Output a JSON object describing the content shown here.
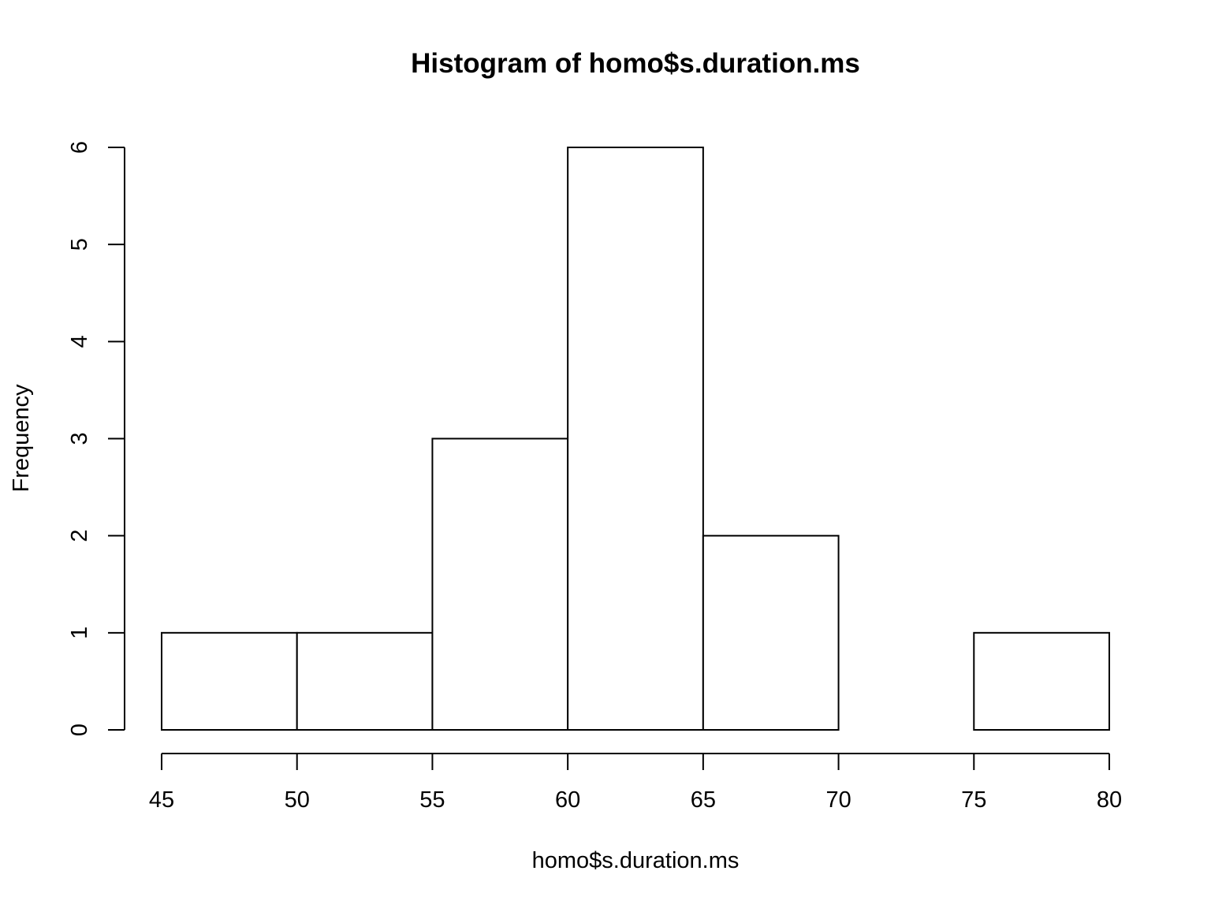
{
  "chart_data": {
    "type": "bar",
    "title": "Histogram of homo$s.duration.ms",
    "xlabel": "homo$s.duration.ms",
    "ylabel": "Frequency",
    "bins": [
      {
        "from": 45,
        "to": 50,
        "count": 1
      },
      {
        "from": 50,
        "to": 55,
        "count": 1
      },
      {
        "from": 55,
        "to": 60,
        "count": 3
      },
      {
        "from": 60,
        "to": 65,
        "count": 6
      },
      {
        "from": 65,
        "to": 70,
        "count": 2
      },
      {
        "from": 70,
        "to": 75,
        "count": 0
      },
      {
        "from": 75,
        "to": 80,
        "count": 1
      }
    ],
    "xticks": [
      45,
      50,
      55,
      60,
      65,
      70,
      75,
      80
    ],
    "yticks": [
      0,
      1,
      2,
      3,
      4,
      5,
      6
    ],
    "xlim": [
      45,
      80
    ],
    "ylim": [
      0,
      6
    ],
    "grid": false,
    "legend": "none"
  }
}
